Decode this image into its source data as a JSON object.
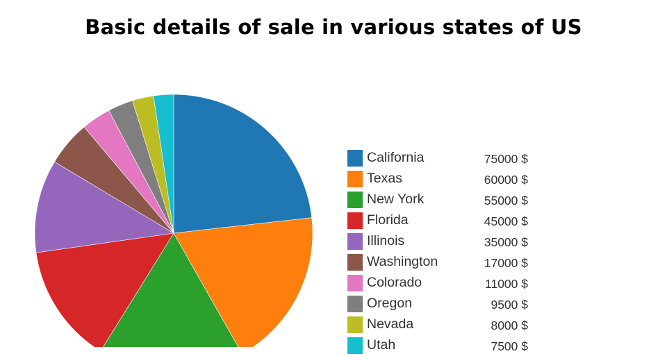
{
  "title": "Basic details of sale in various states of US",
  "chart_data": {
    "type": "pie",
    "title": "Basic details of sale in various states of US",
    "unit": "$",
    "legend_position": "right",
    "slices": [
      {
        "label": "California",
        "value": 75000,
        "display": "75000 $",
        "color": "#1f77b4"
      },
      {
        "label": "Texas",
        "value": 60000,
        "display": "60000 $",
        "color": "#ff7f0e"
      },
      {
        "label": "New York",
        "value": 55000,
        "display": "55000 $",
        "color": "#2ca02c"
      },
      {
        "label": "Florida",
        "value": 45000,
        "display": "45000 $",
        "color": "#d62728"
      },
      {
        "label": "Illinois",
        "value": 35000,
        "display": "35000 $",
        "color": "#9467bd"
      },
      {
        "label": "Washington",
        "value": 17000,
        "display": "17000 $",
        "color": "#8c564b"
      },
      {
        "label": "Colorado",
        "value": 11000,
        "display": "11000 $",
        "color": "#e377c2"
      },
      {
        "label": "Oregon",
        "value": 9500,
        "display": "9500 $",
        "color": "#7f7f7f"
      },
      {
        "label": "Nevada",
        "value": 8000,
        "display": "8000 $",
        "color": "#bcbd22"
      },
      {
        "label": "Utah",
        "value": 7500,
        "display": "7500 $",
        "color": "#17becf"
      }
    ]
  }
}
